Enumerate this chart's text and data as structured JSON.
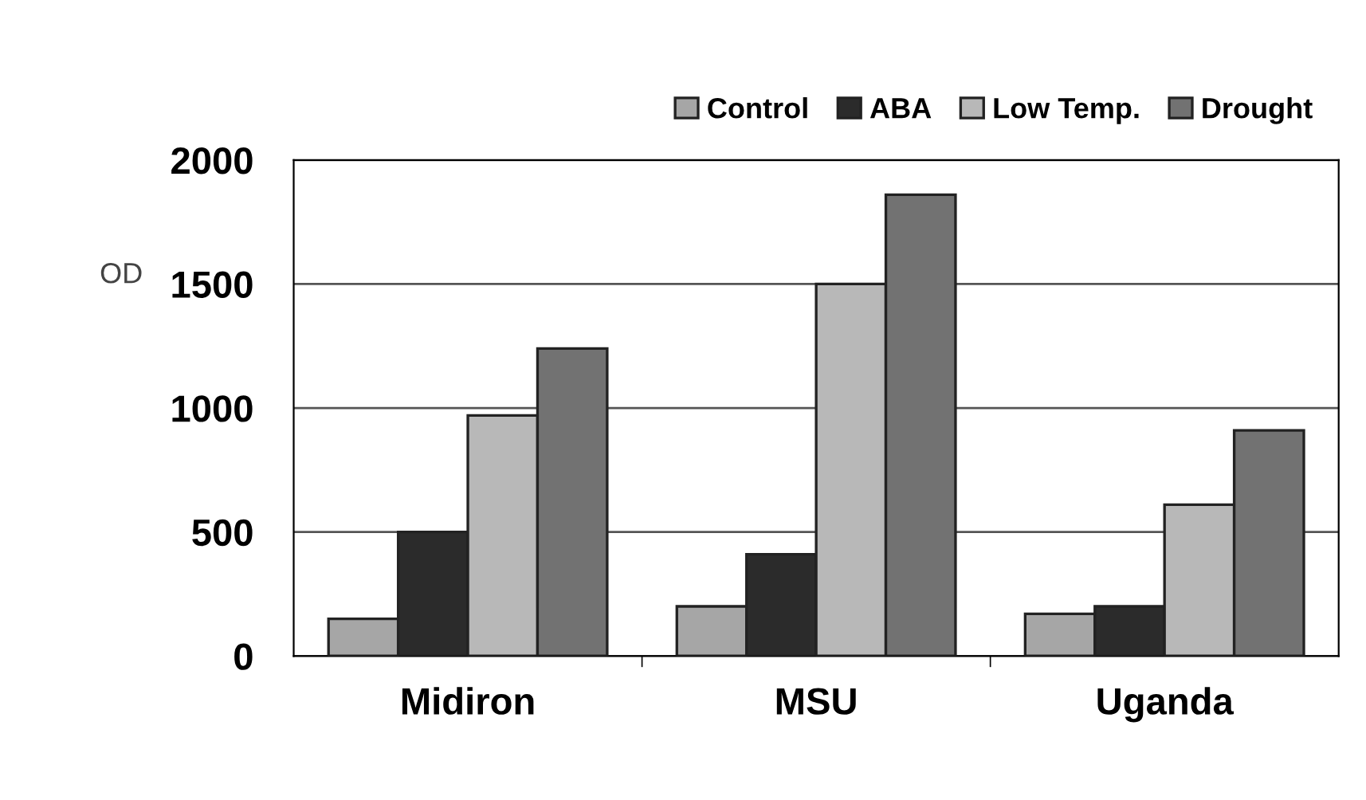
{
  "chart_data": {
    "type": "bar",
    "ylabel": "OD",
    "categories": [
      "Midiron",
      "MSU",
      "Uganda"
    ],
    "series": [
      {
        "name": "Control",
        "color": "#a6a6a6",
        "values": [
          150,
          200,
          170
        ]
      },
      {
        "name": "ABA",
        "color": "#2b2b2b",
        "values": [
          500,
          410,
          200
        ]
      },
      {
        "name": "Low Temp.",
        "color": "#b8b8b8",
        "values": [
          970,
          1500,
          610
        ]
      },
      {
        "name": "Drought",
        "color": "#727272",
        "values": [
          1240,
          1860,
          910
        ]
      }
    ],
    "ylim": [
      0,
      2000
    ],
    "yticks": [
      0,
      500,
      1000,
      1500,
      2000
    ],
    "grid": "y",
    "legend": "top right"
  }
}
